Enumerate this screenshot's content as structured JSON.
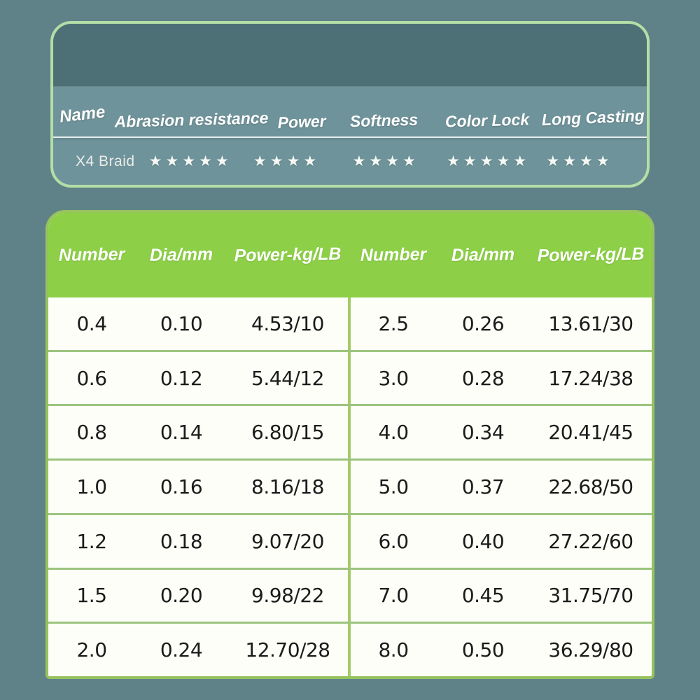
{
  "product": {
    "name_label": "Name",
    "name_value": "X4 Braid"
  },
  "ratings": {
    "star_char": "★",
    "columns": [
      {
        "label": "Abrasion resistance",
        "stars": 5
      },
      {
        "label": "Power",
        "stars": 4
      },
      {
        "label": "Softness",
        "stars": 4
      },
      {
        "label": "Color Lock",
        "stars": 5
      },
      {
        "label": "Long Casting",
        "stars": 4
      }
    ]
  },
  "table": {
    "headers": [
      "Number",
      "Dia/mm",
      "Power-kg/LB"
    ],
    "rows": [
      {
        "left": [
          "0.4",
          "0.10",
          "4.53/10"
        ],
        "right": [
          "2.5",
          "0.26",
          "13.61/30"
        ]
      },
      {
        "left": [
          "0.6",
          "0.12",
          "5.44/12"
        ],
        "right": [
          "3.0",
          "0.28",
          "17.24/38"
        ]
      },
      {
        "left": [
          "0.8",
          "0.14",
          "6.80/15"
        ],
        "right": [
          "4.0",
          "0.34",
          "20.41/45"
        ]
      },
      {
        "left": [
          "1.0",
          "0.16",
          "8.16/18"
        ],
        "right": [
          "5.0",
          "0.37",
          "22.68/50"
        ]
      },
      {
        "left": [
          "1.2",
          "0.18",
          "9.07/20"
        ],
        "right": [
          "6.0",
          "0.40",
          "27.22/60"
        ]
      },
      {
        "left": [
          "1.5",
          "0.20",
          "9.98/22"
        ],
        "right": [
          "7.0",
          "0.45",
          "31.75/70"
        ]
      },
      {
        "left": [
          "2.0",
          "0.24",
          "12.70/28"
        ],
        "right": [
          "8.0",
          "0.50",
          "36.29/80"
        ]
      }
    ]
  },
  "colors": {
    "page-bg": "#5F8288",
    "band-dark": "#4D7076",
    "card-light": "#6F939A",
    "border-mint": "#B3DEA6",
    "header-green": "#8DD047",
    "table-bg": "#FCFEF7",
    "line-green": "#9CC47F",
    "divider-green": "#A3CB66",
    "table-border": "#97C25E",
    "cell-text": "#1B1B1B",
    "soft-white": "#E9ECE9"
  }
}
